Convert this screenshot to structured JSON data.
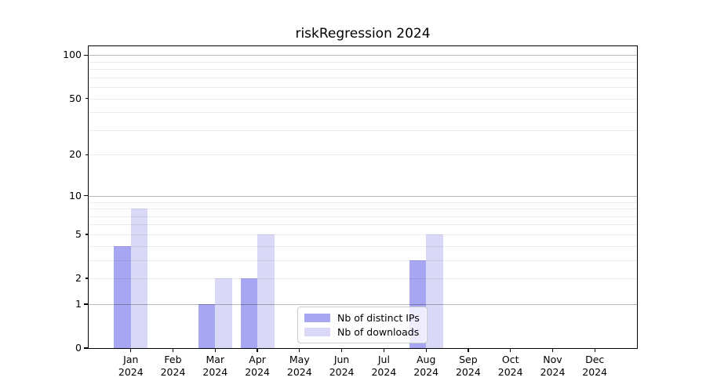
{
  "chart_data": {
    "type": "bar",
    "title": "riskRegression 2024",
    "categories": [
      "Jan",
      "Feb",
      "Mar",
      "Apr",
      "May",
      "Jun",
      "Jul",
      "Aug",
      "Sep",
      "Oct",
      "Nov",
      "Dec"
    ],
    "year_label": "2024",
    "series": [
      {
        "name": "Nb of distinct IPs",
        "color": "#a6a6f2",
        "values": [
          4,
          0,
          1,
          2,
          0,
          0,
          0,
          3,
          0,
          0,
          0,
          0
        ]
      },
      {
        "name": "Nb of downloads",
        "color": "#d9d9f7",
        "values": [
          8,
          0,
          2,
          5,
          0,
          0,
          0,
          5,
          0,
          0,
          0,
          0
        ]
      }
    ],
    "yscale": "log1p",
    "ylim": [
      0,
      115
    ],
    "yticks": [
      0,
      1,
      2,
      5,
      10,
      20,
      50,
      100
    ],
    "major_ticks": [
      0,
      1,
      10,
      100
    ],
    "major_gridlines": [
      1,
      10,
      100
    ],
    "minor_gridlines": [
      2,
      3,
      4,
      5,
      6,
      7,
      8,
      9,
      20,
      30,
      40,
      50,
      60,
      70,
      80,
      90
    ],
    "grid_color_major": "rgba(0,0,0,0.28)",
    "grid_color_minor": "rgba(0,0,0,0.075)",
    "legend_position": "lower center",
    "xlabel": "",
    "ylabel": ""
  }
}
